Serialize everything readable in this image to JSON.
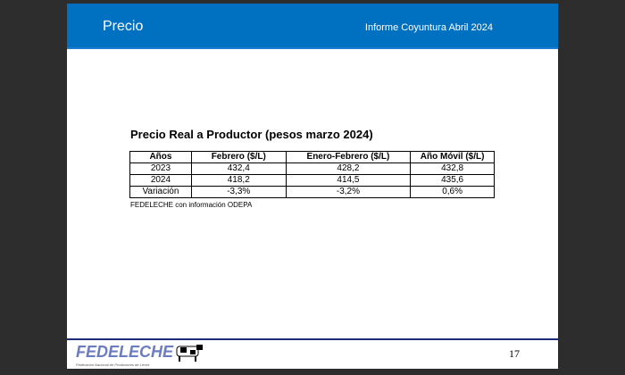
{
  "header": {
    "title": "Precio",
    "subtitle": "Informe Coyuntura Abril 2024"
  },
  "table": {
    "title": "Precio Real a Productor (pesos marzo 2024)",
    "columns": [
      "Años",
      "Febrero ($/L)",
      "Enero-Febrero ($/L)",
      "Año Móvil ($/L)"
    ],
    "rows": [
      [
        "2023",
        "432,4",
        "428,2",
        "432,8"
      ],
      [
        "2024",
        "418,2",
        "414,5",
        "435,6"
      ],
      [
        "Variación",
        "-3,3%",
        "-3,2%",
        "0,6%"
      ]
    ],
    "source": "FEDELECHE con información ODEPA"
  },
  "footer": {
    "logo": "FEDELECHE",
    "logo_sub": "Federación Nacional de Productores de Leche",
    "page": "17"
  },
  "colors": {
    "header": "#0070c0",
    "footer_line": "#1f2a7a"
  }
}
